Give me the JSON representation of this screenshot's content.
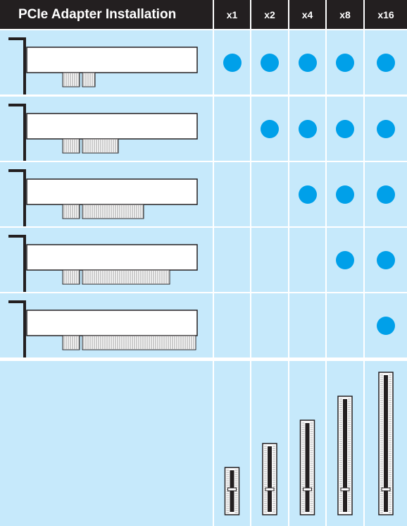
{
  "header": {
    "title": "PCIe Adapter Installation",
    "columns": [
      "x1",
      "x2",
      "x4",
      "x8",
      "x16"
    ]
  },
  "matrix": [
    {
      "card": "x1",
      "fits": [
        true,
        true,
        true,
        true,
        true
      ]
    },
    {
      "card": "x2",
      "fits": [
        false,
        true,
        true,
        true,
        true
      ]
    },
    {
      "card": "x4",
      "fits": [
        false,
        false,
        true,
        true,
        true
      ]
    },
    {
      "card": "x8",
      "fits": [
        false,
        false,
        false,
        true,
        true
      ]
    },
    {
      "card": "x16",
      "fits": [
        false,
        false,
        false,
        false,
        true
      ]
    }
  ],
  "card_lanes": [
    1,
    2,
    4,
    8,
    16
  ],
  "slot_lanes": [
    1,
    2,
    4,
    8,
    16
  ],
  "colors": {
    "header_bg": "#231f20",
    "cell_bg": "#c6e9fb",
    "dot": "#00a0e9",
    "grid": "#ffffff"
  }
}
